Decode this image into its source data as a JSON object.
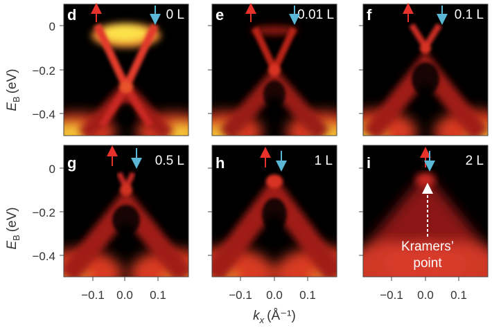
{
  "figure": {
    "y_axis_label": "E_B (eV)",
    "y_axis_symbol": "E",
    "y_axis_subscript": "B",
    "y_axis_unit": "(eV)",
    "x_axis_symbol": "k",
    "x_axis_subscript": "x",
    "x_axis_unit": "(Å⁻¹)",
    "y_ticks": [
      "0",
      "−0.2",
      "−0.4"
    ],
    "x_ticks": [
      "−0.1",
      "0.0",
      "0.1"
    ],
    "arrow_colors": {
      "up": "#e8312a",
      "down": "#5ab8d6"
    },
    "colormap": [
      "#000000",
      "#5a0a0a",
      "#b01818",
      "#e23a2a",
      "#f07a30",
      "#f9d53a",
      "#fff27a"
    ],
    "panels": [
      {
        "letter": "d",
        "dose": "0 L"
      },
      {
        "letter": "e",
        "dose": "0.01 L"
      },
      {
        "letter": "f",
        "dose": "0.1 L"
      },
      {
        "letter": "g",
        "dose": "0.5 L"
      },
      {
        "letter": "h",
        "dose": "1 L"
      },
      {
        "letter": "i",
        "dose": "2 L"
      }
    ],
    "annotation": {
      "line1": "Kramers’",
      "line2": "point"
    }
  }
}
